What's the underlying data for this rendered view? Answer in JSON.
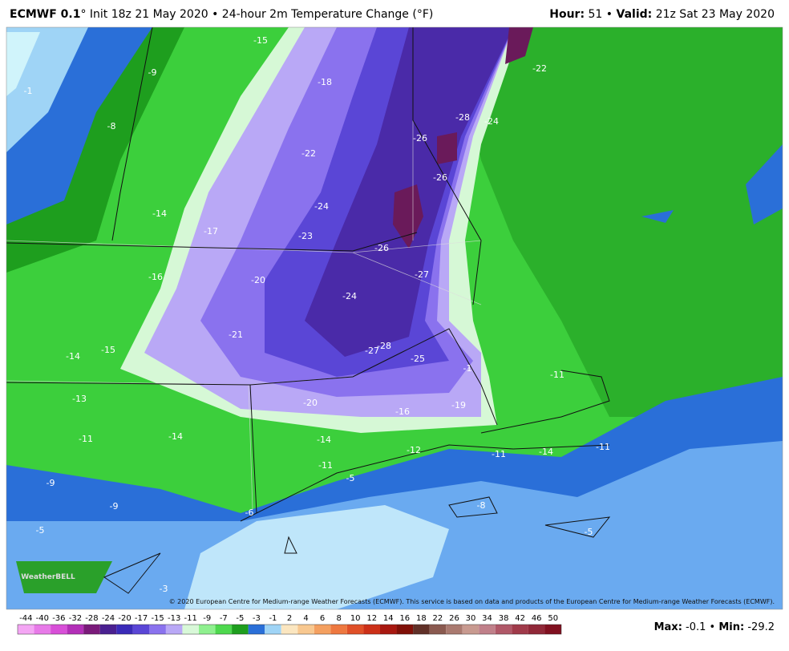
{
  "header": {
    "model": "ECMWF 0.1",
    "title_rest": "° Init 18z 21 May 2020 • 24-hour 2m Temperature Change (°F)",
    "hour_label": "Hour:",
    "hour": "51",
    "separator": "•",
    "valid_label": "Valid:",
    "valid": "21z Sat 23 May 2020"
  },
  "map": {
    "labels": [
      -15,
      -9,
      -1,
      -18,
      -22,
      -28,
      -24,
      -8,
      -26,
      -22,
      -26,
      -24,
      -14,
      -17,
      -23,
      -26,
      -27,
      -16,
      -20,
      -24,
      -21,
      -28,
      -27,
      -15,
      -14,
      -25,
      -1,
      -11,
      -13,
      -20,
      -19,
      -16,
      -14,
      -11,
      -14,
      -12,
      -11,
      -14,
      -11,
      -11,
      -5,
      -9,
      -9,
      -8,
      -6,
      -5,
      -5,
      -3
    ],
    "copyright": "© 2020 European Centre for Medium-range Weather Forecasts (ECMWF). This service is based on data and products of the European Centre for Medium-range Weather Forecasts (ECMWF).",
    "logo": "WeatherBELL"
  },
  "colorbar": {
    "ticks": [
      -44,
      -40,
      -36,
      -32,
      -28,
      -24,
      -20,
      -17,
      -15,
      -13,
      -11,
      -9,
      -7,
      -5,
      -3,
      -1,
      2,
      4,
      6,
      8,
      10,
      12,
      14,
      16,
      18,
      22,
      26,
      30,
      34,
      38,
      42,
      46,
      50
    ],
    "colors": [
      "#f4a6f4",
      "#e77ae8",
      "#d84fd8",
      "#b32fb8",
      "#7a1a7a",
      "#4a2090",
      "#3a2ab8",
      "#5a46d6",
      "#8a72ee",
      "#b9a8f6",
      "#d8f8d8",
      "#8ff08f",
      "#4ed84e",
      "#1e9e1e",
      "#2a6fd8",
      "#9fd4f6",
      "#fbe6c0",
      "#f8c890",
      "#f4a060",
      "#ee7840",
      "#e05028",
      "#cc3018",
      "#a81810",
      "#801008",
      "#603028",
      "#8a5a50",
      "#aa7a70",
      "#c89a90",
      "#c0808a",
      "#b05868",
      "#a03a4a",
      "#902838",
      "#801020"
    ]
  },
  "footer": {
    "max_label": "Max:",
    "max": -0.1,
    "separator": "•",
    "min_label": "Min:",
    "min": -29.2
  }
}
